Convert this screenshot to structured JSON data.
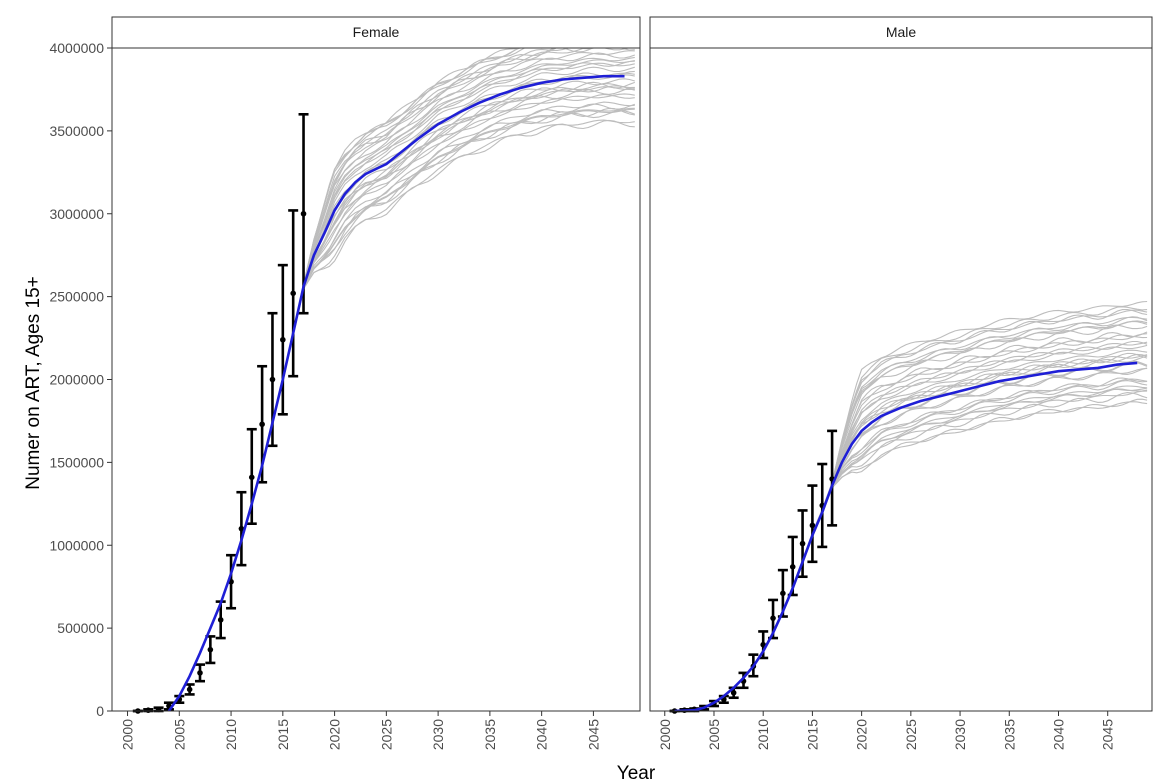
{
  "chart_data": {
    "type": "line",
    "facets": [
      "Female",
      "Male"
    ],
    "xlabel": "Year",
    "ylabel": "Numer on ART, Ages 15+",
    "xlim": [
      1998.5,
      2049.5
    ],
    "ylim": [
      0,
      4000000
    ],
    "x_ticks": [
      2000,
      2005,
      2010,
      2015,
      2020,
      2025,
      2030,
      2035,
      2040,
      2045
    ],
    "y_ticks": [
      0,
      500000,
      1000000,
      1500000,
      2000000,
      2500000,
      3000000,
      3500000,
      4000000
    ],
    "grid": false,
    "colors": {
      "model_mean": "#1f1fd6",
      "simulations": "#bdbdbd",
      "observed": "#000000"
    },
    "panels": [
      {
        "facet": "Female",
        "model_mean": {
          "x": [
            2004,
            2005,
            2006,
            2007,
            2008,
            2009,
            2010,
            2011,
            2012,
            2013,
            2014,
            2015,
            2016,
            2017,
            2018,
            2019,
            2020,
            2021,
            2022,
            2023,
            2024,
            2025,
            2026,
            2028,
            2030,
            2032,
            2034,
            2036,
            2038,
            2040,
            2042,
            2044,
            2046,
            2048
          ],
          "y": [
            0,
            90000,
            210000,
            350000,
            500000,
            650000,
            830000,
            1030000,
            1250000,
            1480000,
            1740000,
            2000000,
            2280000,
            2560000,
            2750000,
            2880000,
            3020000,
            3120000,
            3190000,
            3240000,
            3270000,
            3300000,
            3350000,
            3450000,
            3540000,
            3610000,
            3670000,
            3720000,
            3760000,
            3790000,
            3810000,
            3820000,
            3830000,
            3830000
          ]
        },
        "simulation_end_range": [
          3560000,
          4100000
        ],
        "observed": {
          "x": [
            2001,
            2002,
            2003,
            2004,
            2005,
            2006,
            2007,
            2008,
            2009,
            2010,
            2011,
            2012,
            2013,
            2014,
            2015,
            2016,
            2017
          ],
          "y": [
            0,
            5000,
            10000,
            30000,
            70000,
            130000,
            230000,
            370000,
            550000,
            780000,
            1100000,
            1410000,
            1730000,
            2000000,
            2240000,
            2520000,
            3000000
          ],
          "lower": [
            0,
            0,
            0,
            10000,
            50000,
            100000,
            180000,
            290000,
            440000,
            620000,
            880000,
            1130000,
            1380000,
            1600000,
            1790000,
            2020000,
            2400000
          ],
          "upper": [
            0,
            10000,
            20000,
            50000,
            90000,
            160000,
            280000,
            450000,
            660000,
            940000,
            1320000,
            1700000,
            2080000,
            2400000,
            2690000,
            3020000,
            3600000
          ]
        }
      },
      {
        "facet": "Male",
        "model_mean": {
          "x": [
            2001,
            2003,
            2004,
            2005,
            2006,
            2007,
            2008,
            2009,
            2010,
            2011,
            2012,
            2013,
            2014,
            2015,
            2016,
            2017,
            2018,
            2019,
            2020,
            2021,
            2022,
            2024,
            2026,
            2028,
            2030,
            2032,
            2034,
            2036,
            2038,
            2040,
            2042,
            2044,
            2046,
            2048
          ],
          "y": [
            0,
            5000,
            20000,
            50000,
            90000,
            140000,
            200000,
            270000,
            360000,
            470000,
            600000,
            740000,
            900000,
            1060000,
            1200000,
            1360000,
            1500000,
            1610000,
            1690000,
            1740000,
            1780000,
            1830000,
            1870000,
            1900000,
            1930000,
            1960000,
            1990000,
            2010000,
            2030000,
            2050000,
            2060000,
            2070000,
            2090000,
            2100000
          ]
        },
        "simulation_end_range": [
          1860000,
          2450000
        ],
        "observed": {
          "x": [
            2001,
            2002,
            2003,
            2004,
            2005,
            2006,
            2007,
            2008,
            2009,
            2010,
            2011,
            2012,
            2013,
            2014,
            2015,
            2016,
            2017
          ],
          "y": [
            0,
            5000,
            10000,
            20000,
            45000,
            70000,
            110000,
            180000,
            270000,
            400000,
            560000,
            710000,
            870000,
            1010000,
            1120000,
            1240000,
            1400000
          ],
          "lower": [
            0,
            0,
            0,
            10000,
            30000,
            50000,
            80000,
            140000,
            210000,
            320000,
            440000,
            570000,
            700000,
            810000,
            900000,
            990000,
            1120000
          ],
          "upper": [
            0,
            10000,
            15000,
            30000,
            60000,
            90000,
            140000,
            230000,
            340000,
            480000,
            670000,
            850000,
            1050000,
            1210000,
            1360000,
            1490000,
            1690000
          ]
        }
      }
    ]
  }
}
